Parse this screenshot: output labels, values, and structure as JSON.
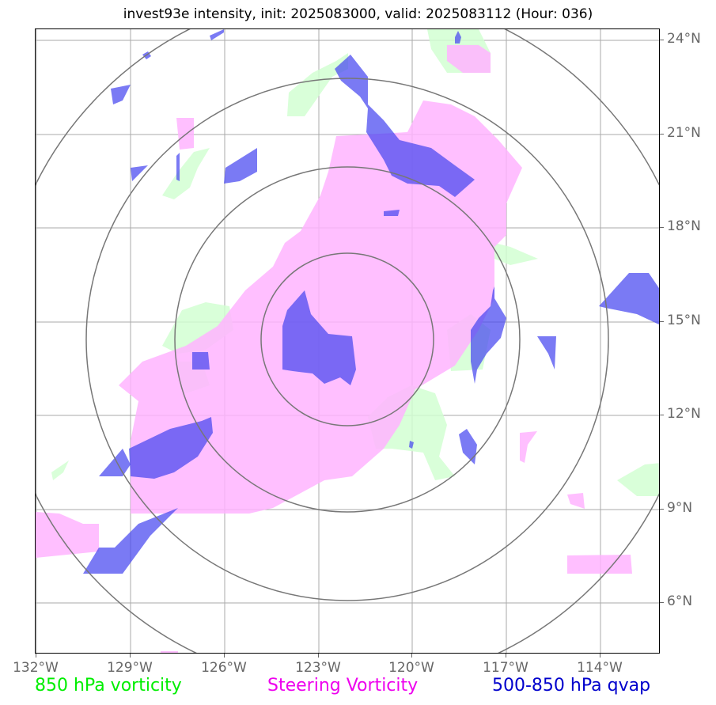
{
  "title": "invest93e intensity, init: 2025083000, valid: 2025083112 (Hour: 036)",
  "lat_labels": [
    "24°N",
    "21°N",
    "18°N",
    "15°N",
    "12°N",
    "9°N",
    "6°N"
  ],
  "lon_labels": [
    "132°W",
    "129°W",
    "126°W",
    "123°W",
    "120°W",
    "117°W",
    "114°W"
  ],
  "legend": {
    "vort850": "850 hPa vorticity",
    "steering": "Steering Vorticity",
    "qvap": "500-850 hPa qvap"
  },
  "colors": {
    "vort850": "#00ee00",
    "steering": "#ee00ee",
    "qvap": "#0000cc",
    "vort850_fill": "#d8ffd8",
    "steering_fill": "#ffb8ff",
    "qvap_fill": "#5050f0",
    "grid": "#aaaaaa",
    "rings": "#777777"
  },
  "map": {
    "center": {
      "lon": "122.1°W",
      "lat": "14.9°N"
    },
    "ring_radii_deg": [
      2.75,
      5.5,
      8.3
    ]
  }
}
